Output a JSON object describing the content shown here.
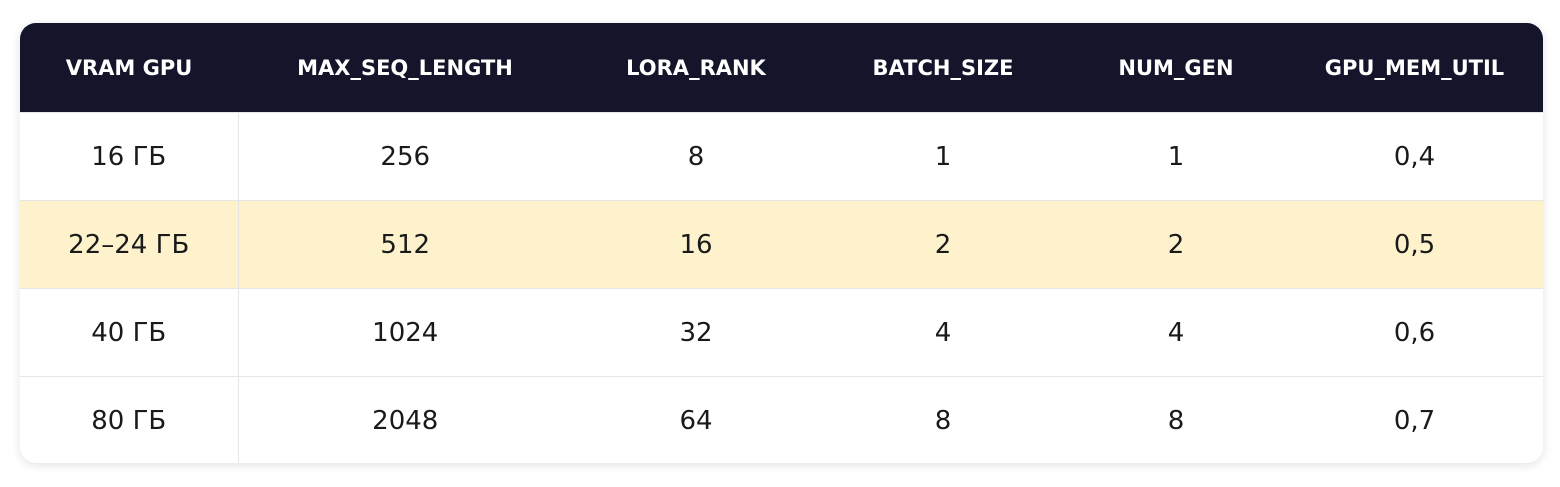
{
  "table": {
    "header": [
      "VRAM GPU",
      "MAX_SEQ_LENGTH",
      "LORA_RANK",
      "BATCH_SIZE",
      "NUM_GEN",
      "GPU_MEM_UTIL"
    ],
    "rows": [
      [
        "16 ГБ",
        "256",
        "8",
        "1",
        "1",
        "0,4"
      ],
      [
        "22–24 ГБ",
        "512",
        "16",
        "2",
        "2",
        "0,5"
      ],
      [
        "40 ГБ",
        "1024",
        "32",
        "4",
        "4",
        "0,6"
      ],
      [
        "80 ГБ",
        "2048",
        "64",
        "8",
        "8",
        "0,7"
      ]
    ],
    "highlighted_row": 1
  }
}
